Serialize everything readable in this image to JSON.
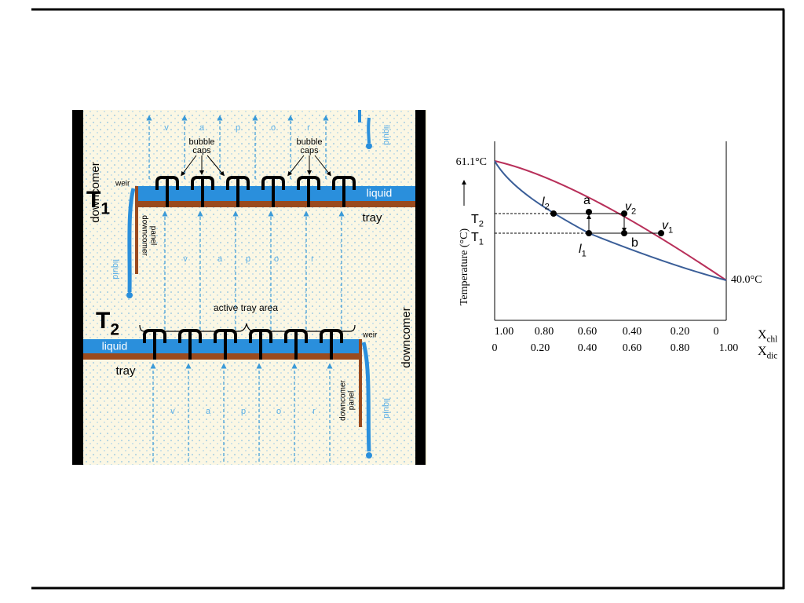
{
  "tray_diagram": {
    "top_vapor": [
      "v",
      "a",
      "p",
      "o",
      "r"
    ],
    "middle_vapor": [
      "v",
      "a",
      "p",
      "o",
      "r"
    ],
    "bottom_vapor": [
      "v",
      "a",
      "p",
      "o",
      "r"
    ],
    "bubble_caps_left": [
      "bubble",
      "caps"
    ],
    "bubble_caps_right": [
      "bubble",
      "caps"
    ],
    "downcomer_left": "downcomer",
    "downcomer_right": "downcomer",
    "weir_top": "weir",
    "weir_bottom": "weir",
    "stage_top": {
      "main": "T",
      "sub": "1"
    },
    "stage_bottom": {
      "main": "T",
      "sub": "2"
    },
    "liquid_labels": [
      "liquid",
      "liquid",
      "liquid",
      "liquid",
      "liquid"
    ],
    "tray_top": "tray",
    "tray_bottom": "tray",
    "downcomer_panel_top": [
      "downcomer",
      "panel"
    ],
    "downcomer_panel_bottom": [
      "downcomer",
      "panel"
    ],
    "active_tray_area": "active tray area"
  },
  "phase_diagram": {
    "y_axis_label": "Temperature (°C)",
    "y_top_label": "61.1°C",
    "y_bottom_label": "40.0°C",
    "temp_marks": [
      {
        "main": "T",
        "sub": "2"
      },
      {
        "main": "T",
        "sub": "1"
      }
    ],
    "point_labels": [
      {
        "main": "l",
        "sub": "2"
      },
      "a",
      {
        "main": "v",
        "sub": "2"
      },
      {
        "main": "v",
        "sub": "1"
      },
      {
        "main": "l",
        "sub": "1"
      },
      "b"
    ],
    "x_axis_rows": [
      {
        "ticks": [
          "1.00",
          "0.80",
          "0.60",
          "0.40",
          "0.20",
          "0"
        ],
        "label": {
          "main": "X",
          "sub": "chl"
        }
      },
      {
        "ticks": [
          "0",
          "0.20",
          "0.40",
          "0.60",
          "0.80",
          "1.00"
        ],
        "label": {
          "main": "X",
          "sub": "dic"
        }
      }
    ]
  }
}
